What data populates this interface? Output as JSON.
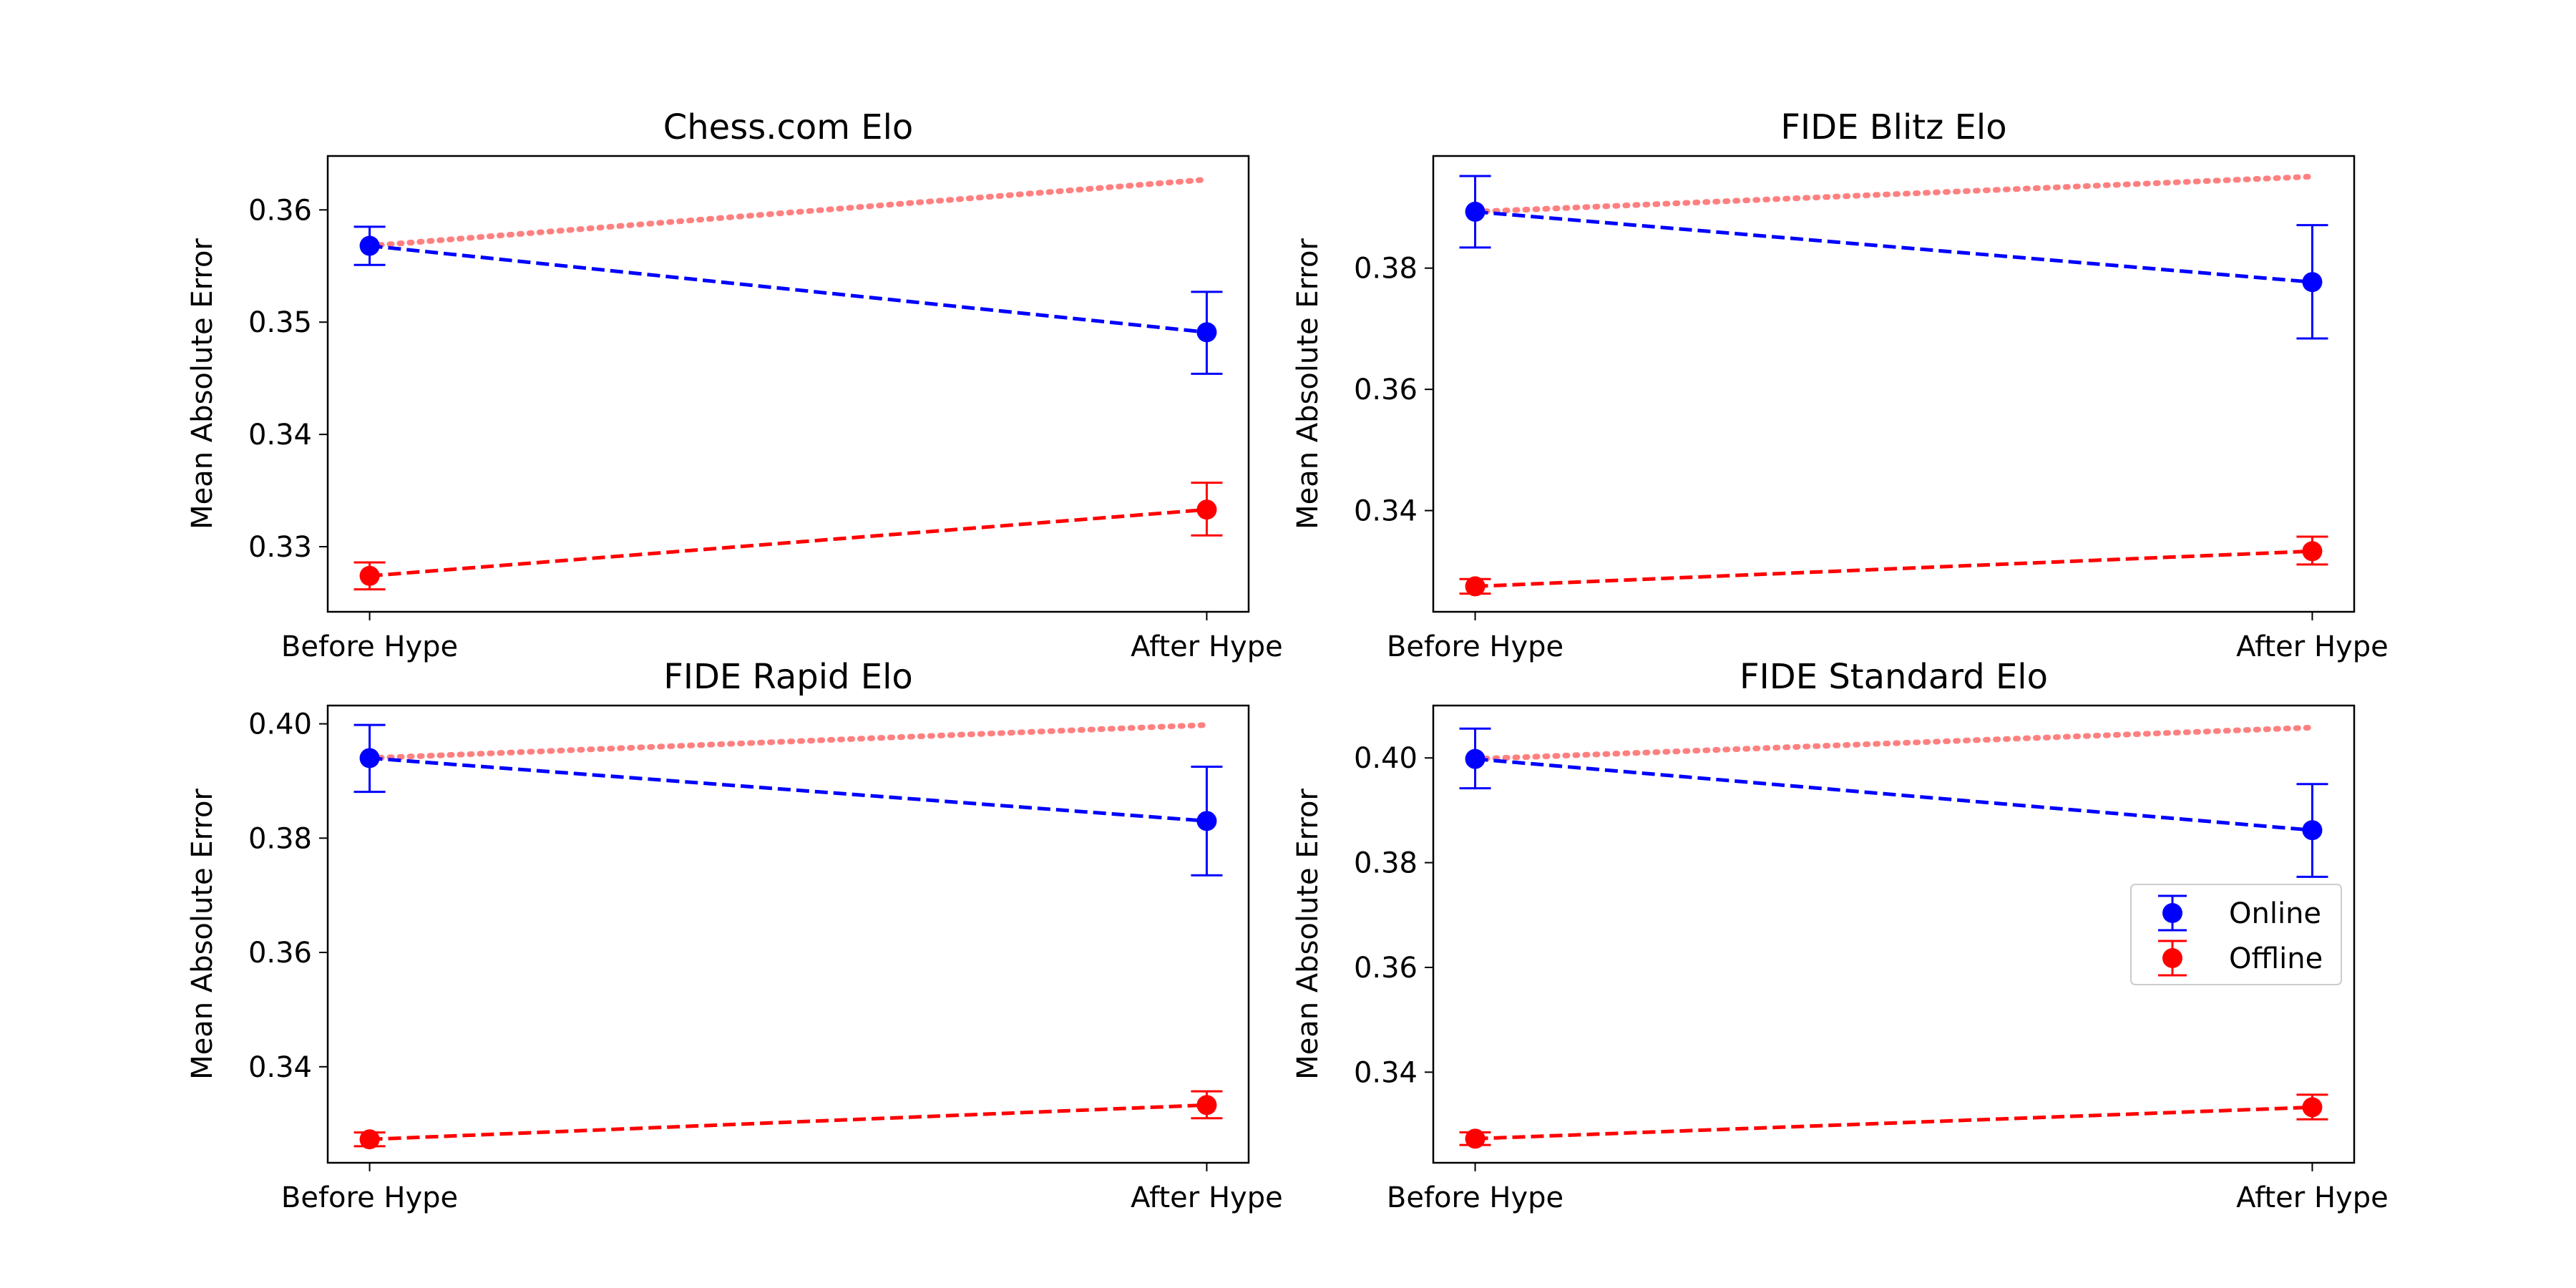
{
  "chart_data": [
    {
      "type": "line",
      "title": "Chess.com Elo",
      "xlabel": "",
      "ylabel": "Mean Absolute Error",
      "categories": [
        "Before Hype",
        "After Hype"
      ],
      "ylim": [
        0.3242,
        0.3648
      ],
      "yticks": [
        "0.33",
        "0.34",
        "0.35",
        "0.36"
      ],
      "series": [
        {
          "name": "Online",
          "style": "dashed",
          "color": "#0000ff",
          "values": [
            0.3568,
            0.3491
          ],
          "err_low": [
            0.3551,
            0.3454
          ],
          "err_high": [
            0.3585,
            0.3527
          ]
        },
        {
          "name": "Offline",
          "style": "dashed",
          "color": "#ff0000",
          "values": [
            0.3274,
            0.3333
          ],
          "err_low": [
            0.3262,
            0.331
          ],
          "err_high": [
            0.3286,
            0.3357
          ]
        },
        {
          "style": "dotted",
          "color": "#ff8080",
          "values": [
            0.3568,
            0.3627
          ]
        }
      ],
      "grid": false
    },
    {
      "type": "line",
      "title": "FIDE Blitz Elo",
      "xlabel": "",
      "ylabel": "Mean Absolute Error",
      "categories": [
        "Before Hype",
        "After Hype"
      ],
      "ylim": [
        0.3233,
        0.3985
      ],
      "yticks": [
        "0.34",
        "0.36",
        "0.38"
      ],
      "series": [
        {
          "name": "Online",
          "style": "dashed",
          "color": "#0000ff",
          "values": [
            0.3893,
            0.3777
          ],
          "err_low": [
            0.3834,
            0.3684
          ],
          "err_high": [
            0.3952,
            0.3871
          ]
        },
        {
          "name": "Offline",
          "style": "dashed",
          "color": "#ff0000",
          "values": [
            0.3275,
            0.3333
          ],
          "err_low": [
            0.3263,
            0.3311
          ],
          "err_high": [
            0.3287,
            0.3357
          ]
        },
        {
          "style": "dotted",
          "color": "#ff8080",
          "values": [
            0.3893,
            0.3951
          ]
        }
      ],
      "grid": false
    },
    {
      "type": "line",
      "title": "FIDE Rapid Elo",
      "xlabel": "",
      "ylabel": "Mean Absolute Error",
      "categories": [
        "Before Hype",
        "After Hype"
      ],
      "ylim": [
        0.3232,
        0.4032
      ],
      "yticks": [
        "0.34",
        "0.36",
        "0.38",
        "0.40"
      ],
      "series": [
        {
          "name": "Online",
          "style": "dashed",
          "color": "#0000ff",
          "values": [
            0.394,
            0.383
          ],
          "err_low": [
            0.3881,
            0.3735
          ],
          "err_high": [
            0.3998,
            0.3925
          ]
        },
        {
          "name": "Offline",
          "style": "dashed",
          "color": "#ff0000",
          "values": [
            0.3273,
            0.3333
          ],
          "err_low": [
            0.3261,
            0.331
          ],
          "err_high": [
            0.3285,
            0.3357
          ]
        },
        {
          "style": "dotted",
          "color": "#ff8080",
          "values": [
            0.394,
            0.3998
          ]
        }
      ],
      "grid": false
    },
    {
      "type": "line",
      "title": "FIDE Standard Elo",
      "xlabel": "",
      "ylabel": "Mean Absolute Error",
      "categories": [
        "Before Hype",
        "After Hype"
      ],
      "ylim": [
        0.3227,
        0.41
      ],
      "yticks": [
        "0.34",
        "0.36",
        "0.38",
        "0.40"
      ],
      "series": [
        {
          "name": "Online",
          "style": "dashed",
          "color": "#0000ff",
          "values": [
            0.3998,
            0.3862
          ],
          "err_low": [
            0.3942,
            0.3773
          ],
          "err_high": [
            0.4056,
            0.395
          ]
        },
        {
          "name": "Offline",
          "style": "dashed",
          "color": "#ff0000",
          "values": [
            0.3273,
            0.3333
          ],
          "err_low": [
            0.3261,
            0.331
          ],
          "err_high": [
            0.3285,
            0.3357
          ]
        },
        {
          "style": "dotted",
          "color": "#ff8080",
          "values": [
            0.3998,
            0.4058
          ]
        }
      ],
      "grid": false
    }
  ],
  "legend": {
    "placement": "center-right",
    "items": [
      {
        "label": "Online",
        "color": "#0000ff"
      },
      {
        "label": "Offline",
        "color": "#ff0000"
      }
    ]
  }
}
